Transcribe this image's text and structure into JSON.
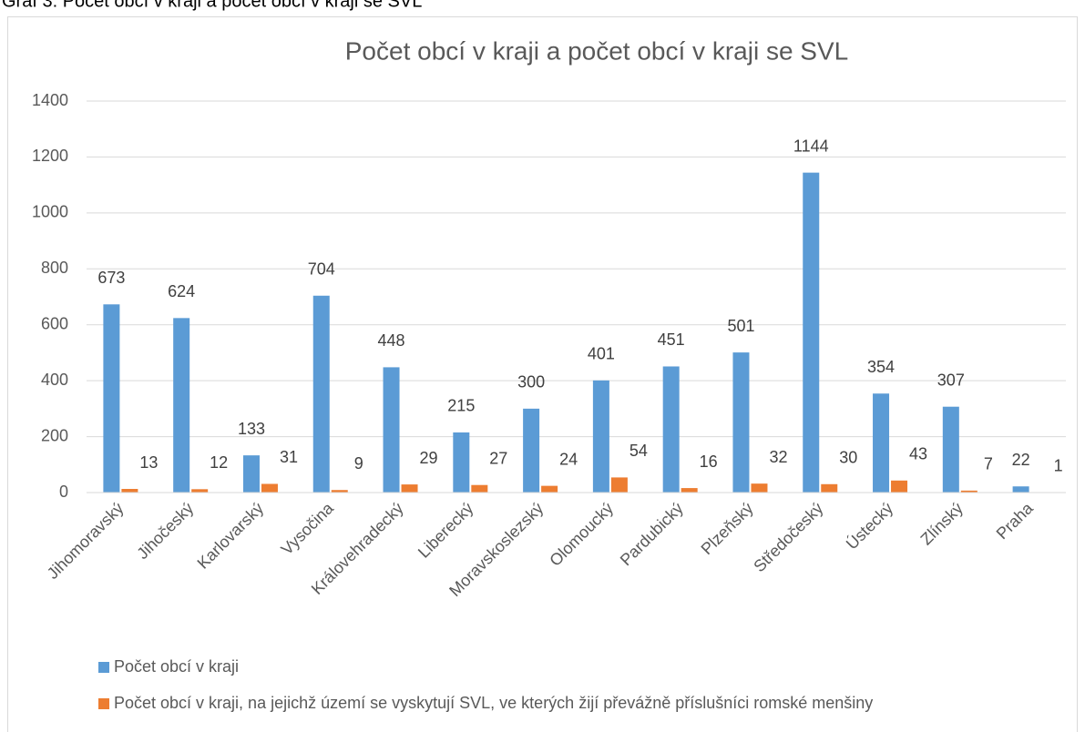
{
  "caption": "Graf 3: Počet obcí v kraji a počet obcí v kraji se SVL",
  "chart_data": {
    "type": "bar",
    "title": "Počet obcí v kraji a počet obcí v kraji se SVL",
    "categories": [
      "Jihomoravský",
      "Jihočeský",
      "Karlovarský",
      "Vysočina",
      "Královehradecký",
      "Liberecký",
      "Moravskoslezský",
      "Olomoucký",
      "Pardubický",
      "Plzeňský",
      "Středočeský",
      "Ústecký",
      "Zlínský",
      "Praha"
    ],
    "series": [
      {
        "name": "Počet obcí v kraji",
        "color": "#5b9bd5",
        "values": [
          673,
          624,
          133,
          704,
          448,
          215,
          300,
          401,
          451,
          501,
          1144,
          354,
          307,
          22
        ]
      },
      {
        "name": "Počet obcí v kraji, na jejichž území se vyskytují SVL, ve kterých žijí převážně příslušníci romské menšiny",
        "color": "#ed7d31",
        "values": [
          13,
          12,
          31,
          9,
          29,
          27,
          24,
          54,
          16,
          32,
          30,
          43,
          7,
          1
        ]
      }
    ],
    "ylim": [
      0,
      1400
    ],
    "yticks": [
      0,
      200,
      400,
      600,
      800,
      1000,
      1200,
      1400
    ],
    "grid": true,
    "legend": "bottom"
  }
}
